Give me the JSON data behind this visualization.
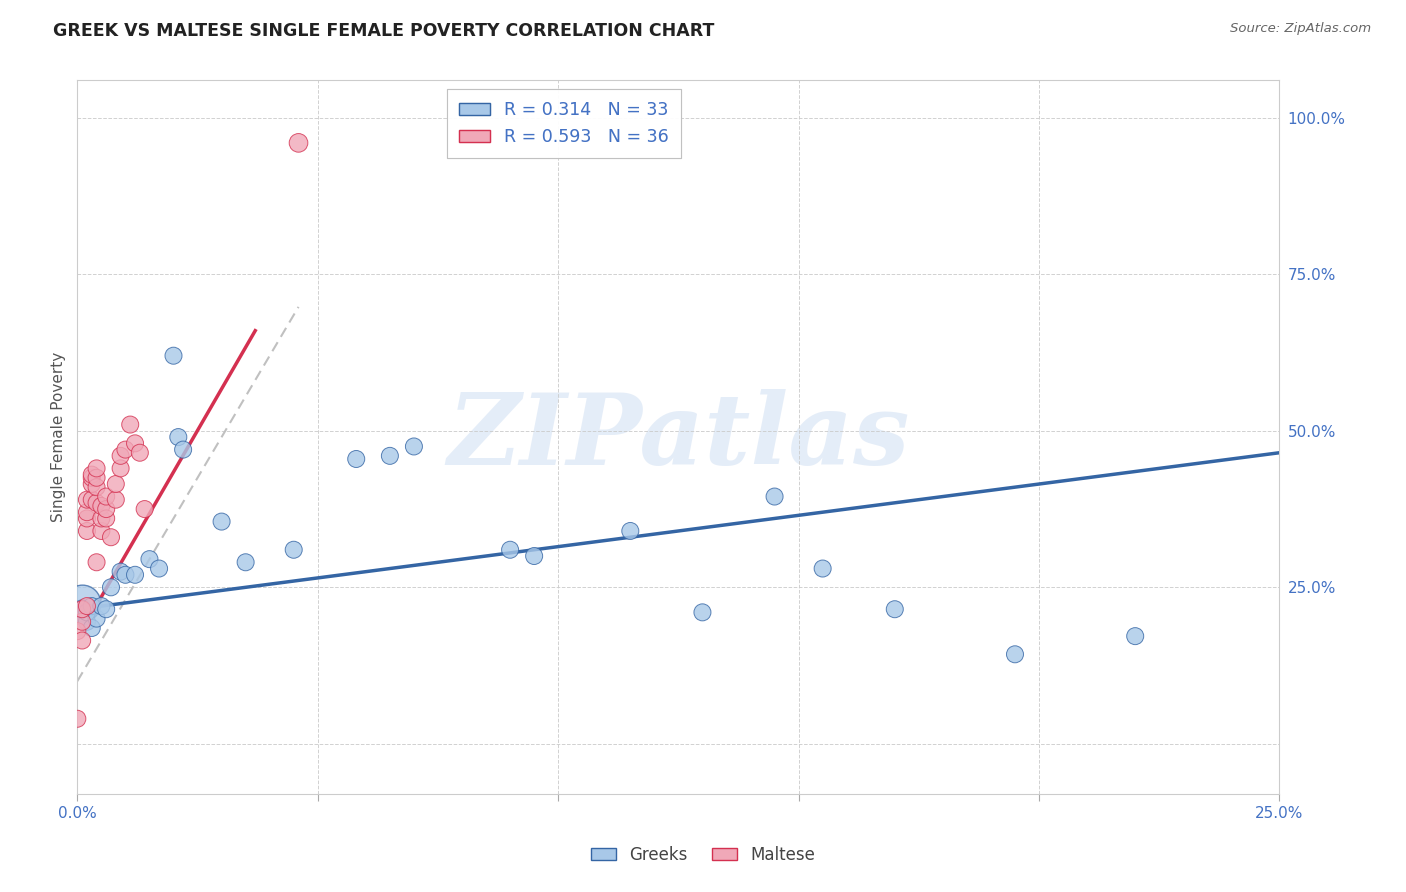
{
  "title": "GREEK VS MALTESE SINGLE FEMALE POVERTY CORRELATION CHART",
  "source": "Source: ZipAtlas.com",
  "ylabel": "Single Female Poverty",
  "R1": 0.314,
  "N1": 33,
  "R2": 0.593,
  "N2": 36,
  "color_greek": "#a8c8e8",
  "color_maltese": "#f0a8b8",
  "color_line_greek": "#3465a4",
  "color_line_maltese": "#d43050",
  "color_axis_label": "#4472c4",
  "color_grid": "#cccccc",
  "xlim": [
    0.0,
    0.25
  ],
  "ylim": [
    -0.08,
    1.06
  ],
  "legend_label1": "Greeks",
  "legend_label2": "Maltese",
  "greeks_x": [
    0.001,
    0.001,
    0.002,
    0.002,
    0.003,
    0.003,
    0.004,
    0.005,
    0.006,
    0.007,
    0.009,
    0.01,
    0.012,
    0.015,
    0.017,
    0.02,
    0.021,
    0.022,
    0.03,
    0.035,
    0.045,
    0.058,
    0.065,
    0.07,
    0.09,
    0.095,
    0.115,
    0.13,
    0.145,
    0.155,
    0.17,
    0.195,
    0.22
  ],
  "greeks_y": [
    0.205,
    0.215,
    0.195,
    0.21,
    0.185,
    0.22,
    0.2,
    0.22,
    0.215,
    0.25,
    0.275,
    0.27,
    0.27,
    0.295,
    0.28,
    0.62,
    0.49,
    0.47,
    0.355,
    0.29,
    0.31,
    0.455,
    0.46,
    0.475,
    0.31,
    0.3,
    0.34,
    0.21,
    0.395,
    0.28,
    0.215,
    0.143,
    0.172
  ],
  "greeks_size": [
    200,
    180,
    150,
    150,
    150,
    150,
    150,
    150,
    150,
    150,
    150,
    150,
    150,
    150,
    150,
    150,
    150,
    150,
    150,
    150,
    150,
    150,
    150,
    150,
    150,
    150,
    150,
    150,
    150,
    150,
    150,
    150,
    150
  ],
  "maltese_x": [
    0.0,
    0.0,
    0.001,
    0.001,
    0.001,
    0.002,
    0.002,
    0.002,
    0.002,
    0.002,
    0.003,
    0.003,
    0.003,
    0.003,
    0.004,
    0.004,
    0.004,
    0.004,
    0.004,
    0.005,
    0.005,
    0.005,
    0.006,
    0.006,
    0.006,
    0.007,
    0.008,
    0.008,
    0.009,
    0.009,
    0.01,
    0.011,
    0.012,
    0.013,
    0.014,
    0.046
  ],
  "maltese_y": [
    0.18,
    0.04,
    0.165,
    0.195,
    0.215,
    0.22,
    0.34,
    0.36,
    0.37,
    0.39,
    0.39,
    0.415,
    0.425,
    0.43,
    0.29,
    0.385,
    0.41,
    0.425,
    0.44,
    0.34,
    0.36,
    0.38,
    0.36,
    0.375,
    0.395,
    0.33,
    0.39,
    0.415,
    0.44,
    0.46,
    0.47,
    0.51,
    0.48,
    0.465,
    0.375,
    0.96
  ],
  "maltese_size": [
    150,
    150,
    150,
    150,
    150,
    150,
    150,
    150,
    150,
    150,
    150,
    150,
    150,
    150,
    150,
    150,
    150,
    150,
    150,
    150,
    150,
    150,
    150,
    150,
    150,
    150,
    150,
    150,
    150,
    150,
    150,
    150,
    150,
    150,
    150,
    180
  ],
  "greek_line_x": [
    0.0,
    0.25
  ],
  "greek_line_y": [
    0.215,
    0.465
  ],
  "maltese_line_x": [
    0.0035,
    0.037
  ],
  "maltese_line_y": [
    0.215,
    0.66
  ],
  "dashed_line_x": [
    0.0,
    0.046
  ],
  "dashed_line_y_start": 0.1,
  "dashed_line_slope": 13.0
}
